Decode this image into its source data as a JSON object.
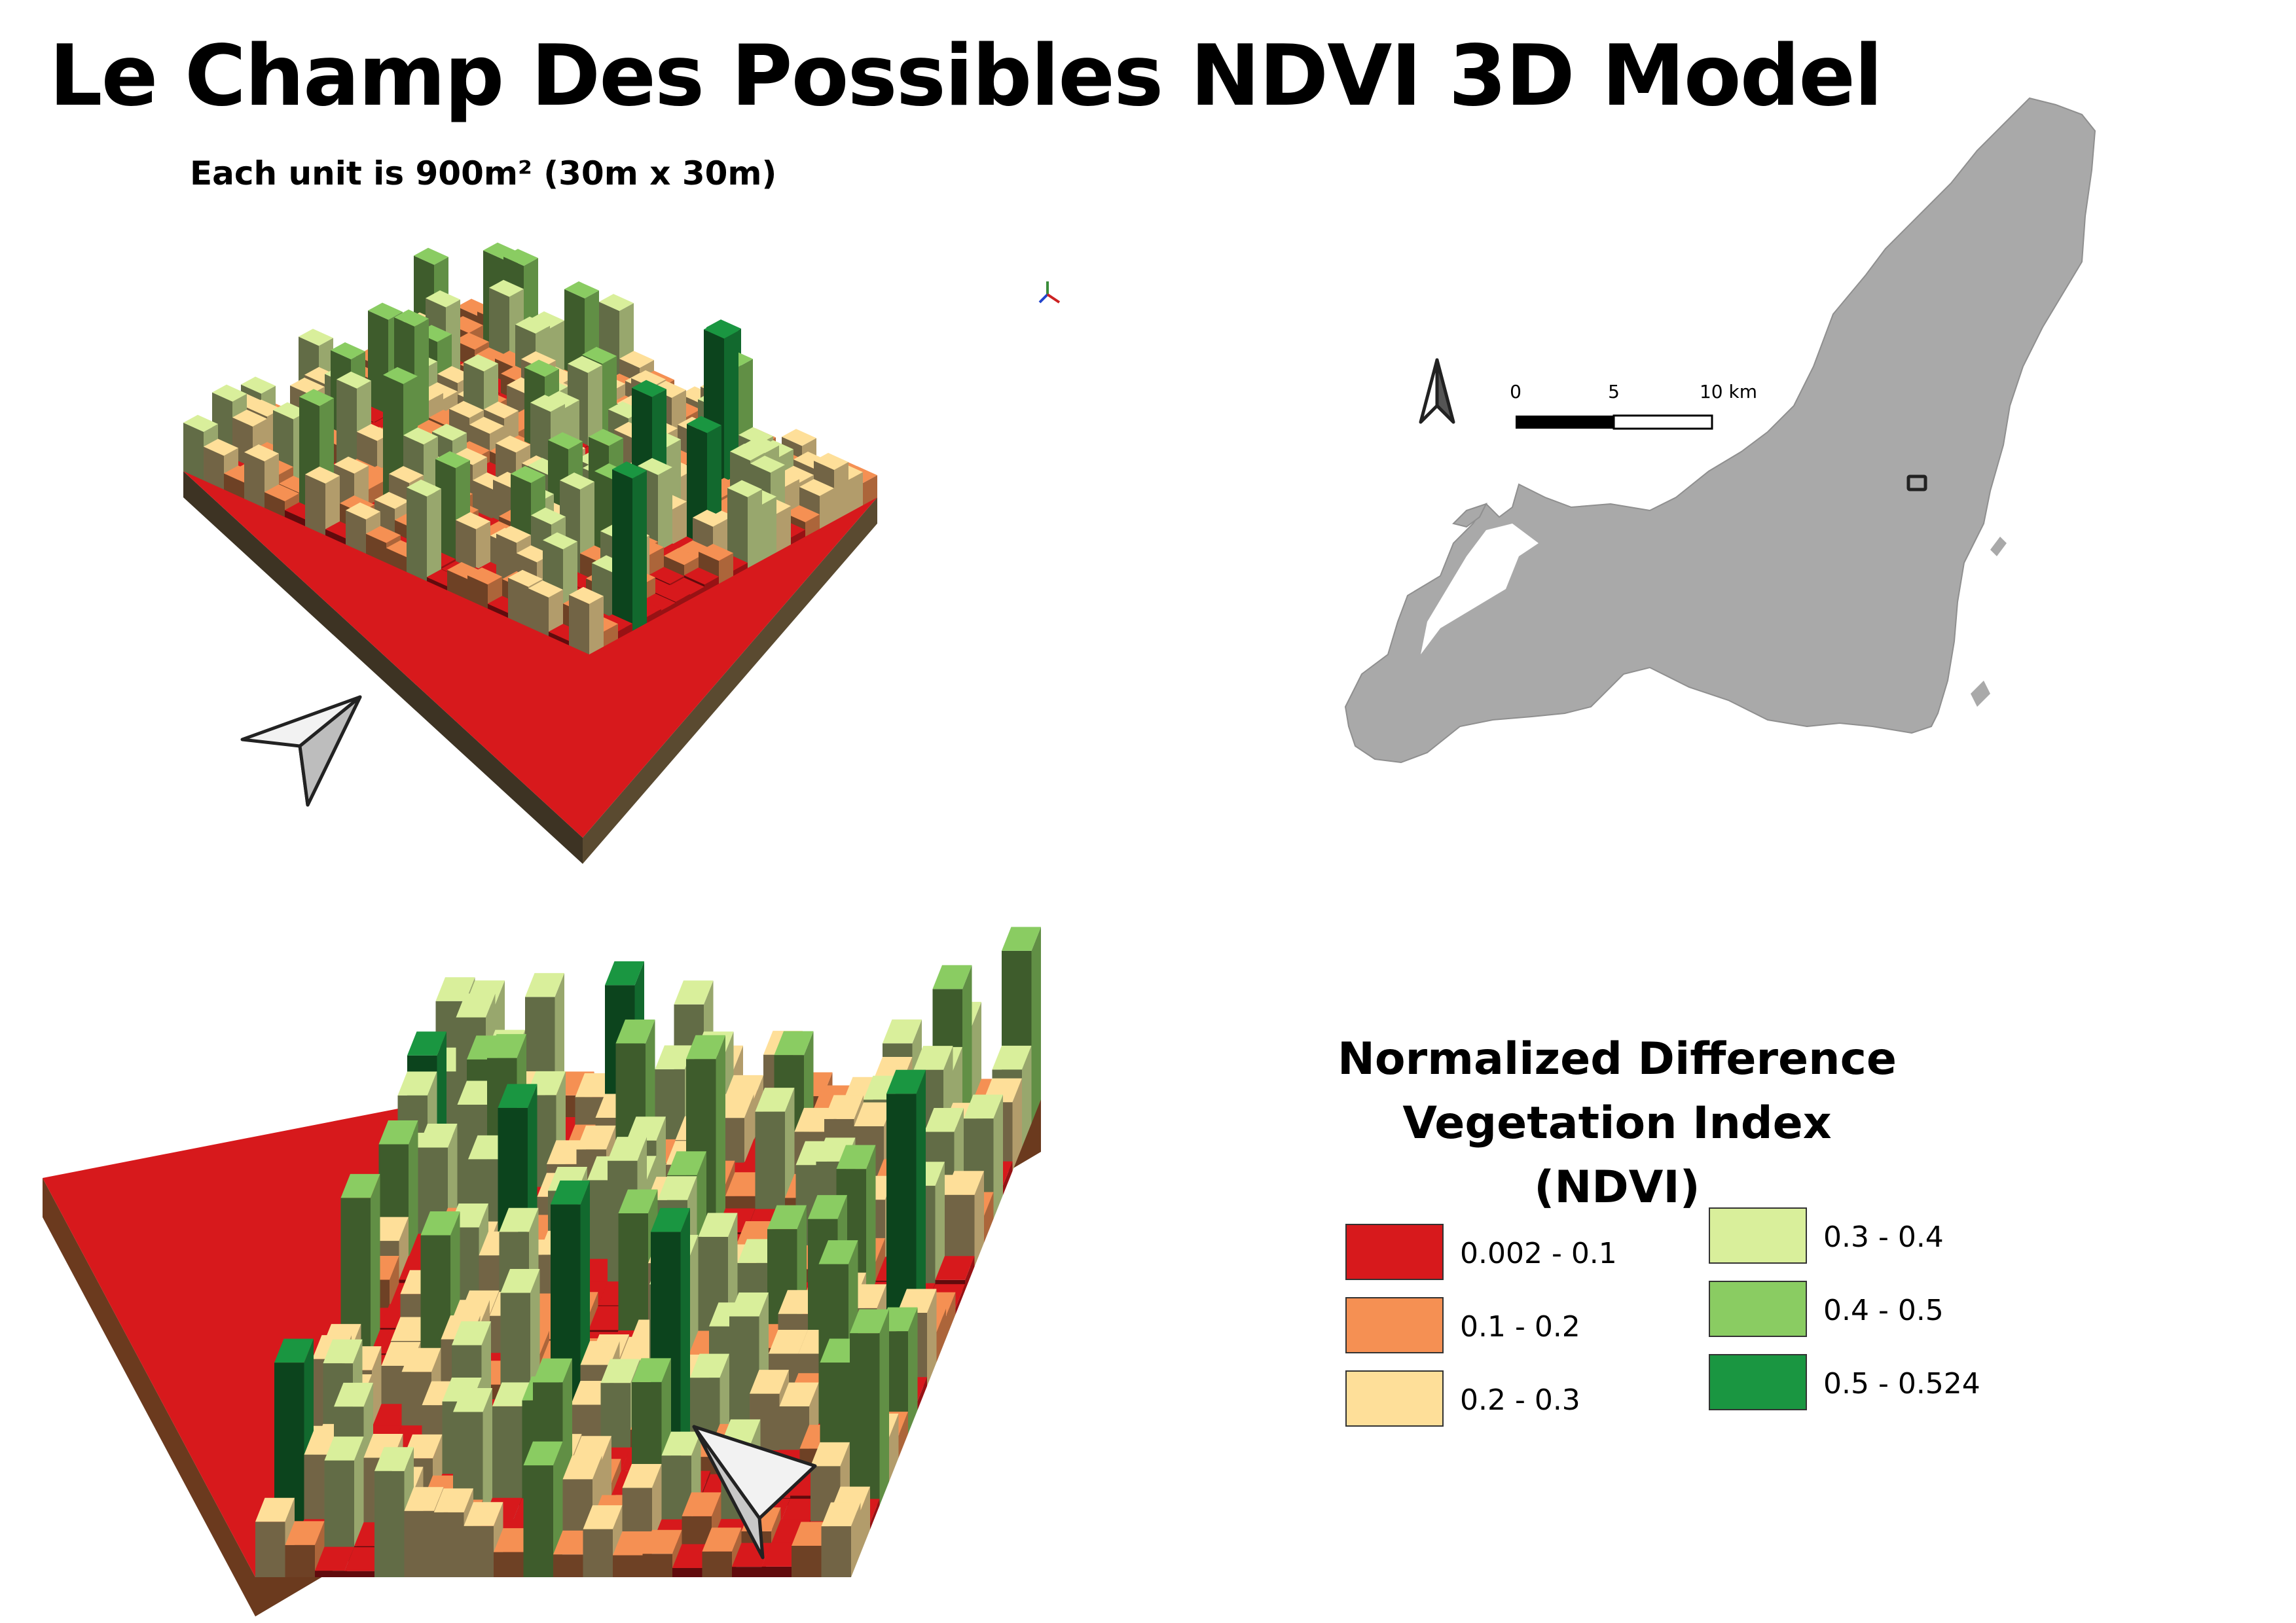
{
  "title": "Le Champ Des Possibles NDVI 3D Model",
  "subtitle": "Each unit is 900m² (30m x 30m)",
  "scale_bar": {
    "labels": [
      "0",
      "5",
      "10 km"
    ]
  },
  "legend": {
    "title_line1": "Normalized Difference",
    "title_line2": "Vegetation Index (NDVI)",
    "items": [
      {
        "label": "0.002 - 0.1",
        "color": "#d7191c"
      },
      {
        "label": "0.1 - 0.2",
        "color": "#f59053"
      },
      {
        "label": "0.2 - 0.3",
        "color": "#fedf99"
      },
      {
        "label": "0.3 - 0.4",
        "color": "#d9ef9b"
      },
      {
        "label": "0.4 - 0.5",
        "color": "#8acc62"
      },
      {
        "label": "0.5 - 0.524",
        "color": "#1a9641"
      }
    ]
  },
  "icons": {
    "north_arrow": "north-arrow-icon",
    "direction_arrow_top": "view-direction-arrow-icon",
    "direction_arrow_bottom": "view-direction-arrow-icon",
    "axis_gizmo": "axis-gizmo-icon"
  }
}
